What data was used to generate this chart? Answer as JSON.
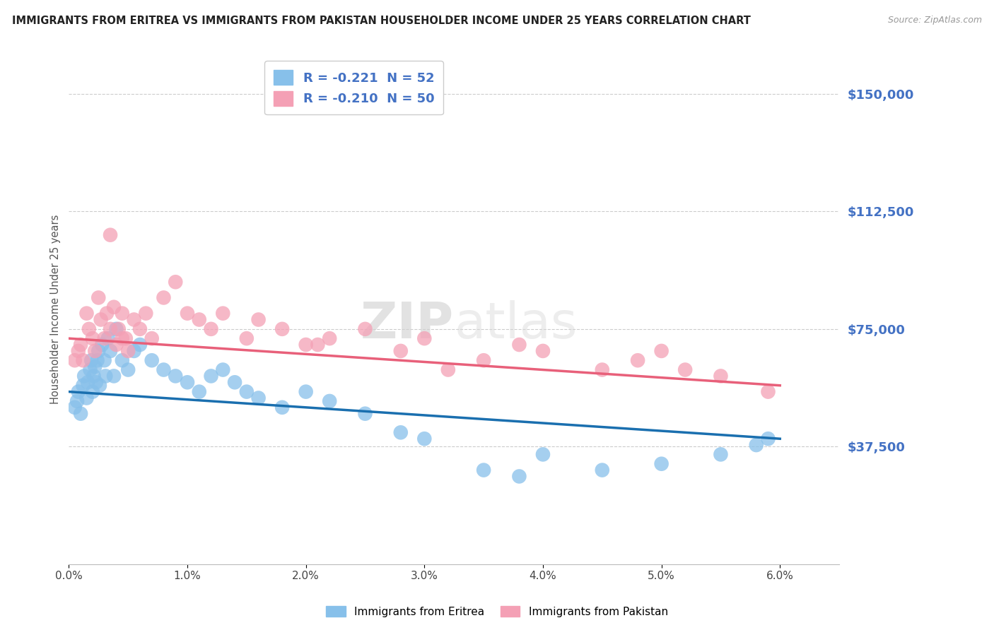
{
  "title": "IMMIGRANTS FROM ERITREA VS IMMIGRANTS FROM PAKISTAN HOUSEHOLDER INCOME UNDER 25 YEARS CORRELATION CHART",
  "source": "Source: ZipAtlas.com",
  "ylabel": "Householder Income Under 25 years",
  "xlabel_ticks": [
    "0.0%",
    "1.0%",
    "2.0%",
    "3.0%",
    "4.0%",
    "5.0%",
    "6.0%"
  ],
  "xlabel_vals": [
    0.0,
    1.0,
    2.0,
    3.0,
    4.0,
    5.0,
    6.0
  ],
  "ytick_labels": [
    "$37,500",
    "$75,000",
    "$112,500",
    "$150,000"
  ],
  "ytick_vals": [
    37500,
    75000,
    112500,
    150000
  ],
  "ylim": [
    0,
    162500
  ],
  "xlim": [
    0.0,
    6.5
  ],
  "legend_eritrea": "R = -0.221  N = 52",
  "legend_pakistan": "R = -0.210  N = 50",
  "legend_label_eritrea": "Immigrants from Eritrea",
  "legend_label_pakistan": "Immigrants from Pakistan",
  "color_eritrea": "#87c0ea",
  "color_pakistan": "#f4a0b5",
  "line_color_eritrea": "#1a6faf",
  "line_color_pakistan": "#e8607a",
  "watermark_1": "ZIP",
  "watermark_2": "atlas",
  "eritrea_x": [
    0.05,
    0.07,
    0.08,
    0.1,
    0.12,
    0.13,
    0.15,
    0.16,
    0.18,
    0.19,
    0.2,
    0.21,
    0.22,
    0.23,
    0.24,
    0.25,
    0.26,
    0.28,
    0.3,
    0.31,
    0.33,
    0.35,
    0.38,
    0.4,
    0.45,
    0.5,
    0.55,
    0.6,
    0.7,
    0.8,
    0.9,
    1.0,
    1.1,
    1.2,
    1.3,
    1.4,
    1.5,
    1.6,
    1.8,
    2.0,
    2.2,
    2.5,
    2.8,
    3.0,
    3.5,
    3.8,
    4.0,
    4.5,
    5.0,
    5.5,
    5.8,
    5.9
  ],
  "eritrea_y": [
    50000,
    52000,
    55000,
    48000,
    57000,
    60000,
    53000,
    58000,
    62000,
    65000,
    55000,
    60000,
    63000,
    58000,
    65000,
    68000,
    57000,
    70000,
    65000,
    60000,
    72000,
    68000,
    60000,
    75000,
    65000,
    62000,
    68000,
    70000,
    65000,
    62000,
    60000,
    58000,
    55000,
    60000,
    62000,
    58000,
    55000,
    53000,
    50000,
    55000,
    52000,
    48000,
    42000,
    40000,
    30000,
    28000,
    35000,
    30000,
    32000,
    35000,
    38000,
    40000
  ],
  "pakistan_x": [
    0.05,
    0.08,
    0.1,
    0.12,
    0.15,
    0.17,
    0.2,
    0.22,
    0.25,
    0.27,
    0.3,
    0.32,
    0.35,
    0.38,
    0.4,
    0.42,
    0.45,
    0.48,
    0.5,
    0.55,
    0.6,
    0.65,
    0.7,
    0.8,
    0.9,
    1.0,
    1.1,
    1.2,
    1.3,
    1.5,
    1.6,
    1.8,
    2.0,
    2.2,
    2.5,
    2.8,
    3.0,
    3.5,
    3.8,
    4.0,
    4.5,
    4.8,
    5.0,
    5.2,
    5.5,
    5.9,
    0.35,
    0.45,
    2.1,
    3.2
  ],
  "pakistan_y": [
    65000,
    68000,
    70000,
    65000,
    80000,
    75000,
    72000,
    68000,
    85000,
    78000,
    72000,
    80000,
    75000,
    82000,
    70000,
    75000,
    80000,
    72000,
    68000,
    78000,
    75000,
    80000,
    72000,
    85000,
    90000,
    80000,
    78000,
    75000,
    80000,
    72000,
    78000,
    75000,
    70000,
    72000,
    75000,
    68000,
    72000,
    65000,
    70000,
    68000,
    62000,
    65000,
    68000,
    62000,
    60000,
    55000,
    105000,
    72000,
    70000,
    62000
  ],
  "title_fontsize": 10.5,
  "axis_label_fontsize": 10,
  "tick_fontsize": 11
}
